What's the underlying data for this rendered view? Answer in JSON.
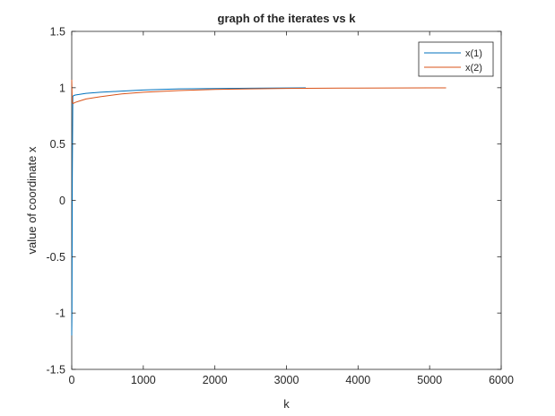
{
  "chart_data": {
    "type": "line",
    "title": "graph of the iterates vs k",
    "xlabel": "k",
    "ylabel": "value of coordinate x",
    "xlim": [
      0,
      6000
    ],
    "ylim": [
      -1.5,
      1.5
    ],
    "xticks": [
      0,
      1000,
      2000,
      3000,
      4000,
      5000,
      6000
    ],
    "yticks": [
      -1.5,
      -1,
      -0.5,
      0,
      0.5,
      1,
      1.5
    ],
    "xtick_labels": [
      "0",
      "1000",
      "2000",
      "3000",
      "4000",
      "5000",
      "6000"
    ],
    "ytick_labels": [
      "-1.5",
      "-1",
      "-0.5",
      "0",
      "0.5",
      "1",
      "1.5"
    ],
    "grid": false,
    "legend_position": "top-right",
    "series": [
      {
        "name": "x(1)",
        "color": "#0072BD",
        "x": [
          0,
          3,
          8,
          15,
          25,
          50,
          100,
          200,
          400,
          700,
          1000,
          1500,
          2000,
          2500,
          3000,
          3270
        ],
        "y": [
          -1.2,
          -1.0,
          0.2,
          0.92,
          0.93,
          0.935,
          0.94,
          0.95,
          0.96,
          0.97,
          0.98,
          0.99,
          0.993,
          0.996,
          0.998,
          0.999
        ]
      },
      {
        "name": "x(2)",
        "color": "#D95319",
        "x": [
          0,
          3,
          6,
          10,
          20,
          50,
          100,
          200,
          400,
          700,
          1000,
          1500,
          2000,
          2500,
          3000,
          4000,
          5000,
          5230
        ],
        "y": [
          1.07,
          1.0,
          0.9,
          0.87,
          0.86,
          0.87,
          0.88,
          0.9,
          0.92,
          0.945,
          0.96,
          0.975,
          0.985,
          0.99,
          0.994,
          0.997,
          0.999,
          0.999
        ]
      }
    ]
  }
}
